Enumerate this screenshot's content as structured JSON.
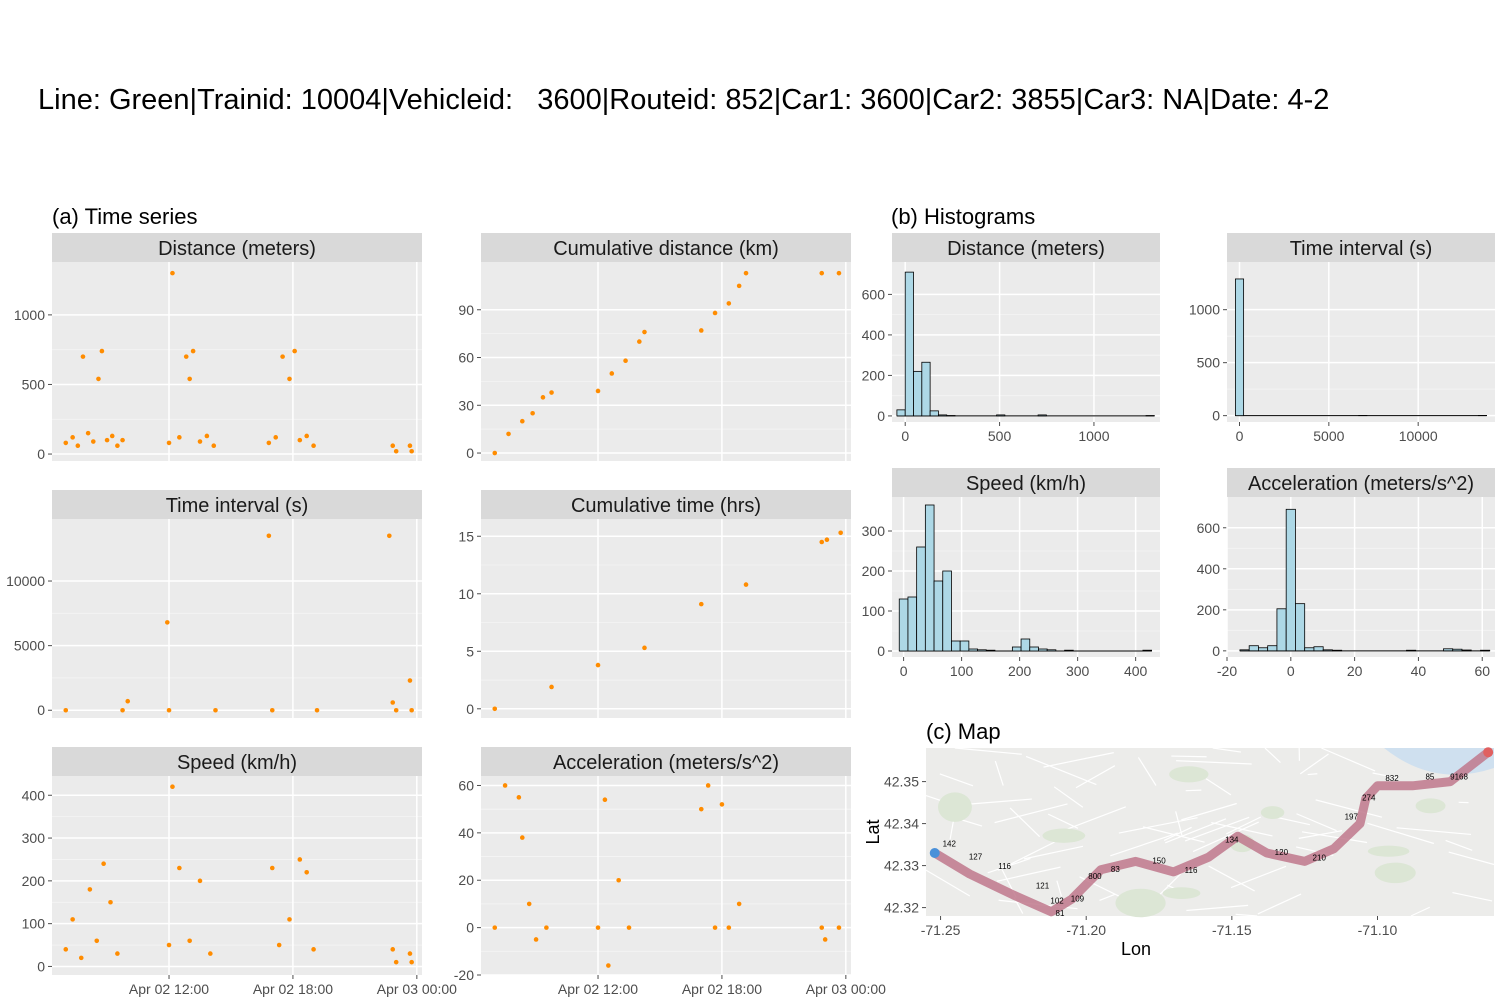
{
  "title": "Line: Green|Trainid: 10004|Vehicleid:   3600|Routeid: 852|Car1: 3600|Car2: 3855|Car3: NA|Date: 4-2",
  "sections": {
    "a": "(a) Time series",
    "b": "(b) Histograms",
    "c": "(c) Map"
  },
  "colors": {
    "points": "#FF8C00",
    "hist_fill": "#ADD8E6",
    "panel_bg": "#EBEBEB",
    "strip_bg": "#D9D9D9",
    "route": "#C0788C",
    "map_end": "#E06060",
    "map_start": "#4A90D9"
  },
  "chart_data": [
    {
      "type": "scatter",
      "panel": "time-series",
      "title": "Distance (meters)",
      "x_type": "datetime",
      "xlim": [
        "2022-04-02 06:20",
        "2022-04-03 00:15"
      ],
      "x_ticks": [
        "2022-04-02 12:00",
        "2022-04-02 18:00",
        "2022-04-03 00:00"
      ],
      "ylim": [
        -50,
        1380
      ],
      "y_ticks": [
        0,
        500,
        1000
      ],
      "points": [
        [
          "2022-04-02 07:00",
          80
        ],
        [
          "2022-04-02 07:20",
          120
        ],
        [
          "2022-04-02 07:35",
          60
        ],
        [
          "2022-04-02 07:50",
          700
        ],
        [
          "2022-04-02 08:05",
          150
        ],
        [
          "2022-04-02 08:20",
          90
        ],
        [
          "2022-04-02 08:35",
          540
        ],
        [
          "2022-04-02 08:45",
          740
        ],
        [
          "2022-04-02 09:00",
          100
        ],
        [
          "2022-04-02 09:15",
          130
        ],
        [
          "2022-04-02 09:30",
          60
        ],
        [
          "2022-04-02 09:45",
          100
        ],
        [
          "2022-04-02 12:00",
          80
        ],
        [
          "2022-04-02 12:10",
          1300
        ],
        [
          "2022-04-02 12:30",
          120
        ],
        [
          "2022-04-02 12:50",
          700
        ],
        [
          "2022-04-02 13:00",
          540
        ],
        [
          "2022-04-02 13:10",
          740
        ],
        [
          "2022-04-02 13:30",
          90
        ],
        [
          "2022-04-02 13:50",
          130
        ],
        [
          "2022-04-02 14:10",
          60
        ],
        [
          "2022-04-02 16:50",
          80
        ],
        [
          "2022-04-02 17:10",
          120
        ],
        [
          "2022-04-02 17:30",
          700
        ],
        [
          "2022-04-02 17:50",
          540
        ],
        [
          "2022-04-02 18:05",
          740
        ],
        [
          "2022-04-02 18:20",
          100
        ],
        [
          "2022-04-02 18:40",
          130
        ],
        [
          "2022-04-02 19:00",
          60
        ],
        [
          "2022-04-02 22:50",
          60
        ],
        [
          "2022-04-02 23:00",
          20
        ],
        [
          "2022-04-02 23:40",
          60
        ],
        [
          "2022-04-02 23:45",
          20
        ]
      ]
    },
    {
      "type": "scatter",
      "panel": "time-series",
      "title": "Cumulative distance (km)",
      "x_type": "datetime",
      "xlim": [
        "2022-04-02 06:20",
        "2022-04-03 00:15"
      ],
      "x_ticks": [
        "2022-04-02 12:00",
        "2022-04-02 18:00",
        "2022-04-03 00:00"
      ],
      "ylim": [
        -5,
        120
      ],
      "y_ticks": [
        0,
        30,
        60,
        90
      ],
      "points": [
        [
          "2022-04-02 07:00",
          0
        ],
        [
          "2022-04-02 07:40",
          12
        ],
        [
          "2022-04-02 08:20",
          20
        ],
        [
          "2022-04-02 08:50",
          25
        ],
        [
          "2022-04-02 09:20",
          35
        ],
        [
          "2022-04-02 09:45",
          38
        ],
        [
          "2022-04-02 12:00",
          39
        ],
        [
          "2022-04-02 12:40",
          50
        ],
        [
          "2022-04-02 13:20",
          58
        ],
        [
          "2022-04-02 14:00",
          70
        ],
        [
          "2022-04-02 14:15",
          76
        ],
        [
          "2022-04-02 17:00",
          77
        ],
        [
          "2022-04-02 17:40",
          88
        ],
        [
          "2022-04-02 18:20",
          94
        ],
        [
          "2022-04-02 18:50",
          105
        ],
        [
          "2022-04-02 19:10",
          113
        ],
        [
          "2022-04-02 22:50",
          113
        ],
        [
          "2022-04-02 23:40",
          113
        ]
      ]
    },
    {
      "type": "scatter",
      "panel": "time-series",
      "title": "Time interval (s)",
      "x_type": "datetime",
      "xlim": [
        "2022-04-02 06:20",
        "2022-04-03 00:15"
      ],
      "x_ticks": [
        "2022-04-02 12:00",
        "2022-04-02 18:00",
        "2022-04-03 00:00"
      ],
      "ylim": [
        -600,
        14800
      ],
      "y_ticks": [
        0,
        5000,
        10000
      ],
      "points": [
        [
          "2022-04-02 07:00",
          0
        ],
        [
          "2022-04-02 09:45",
          0
        ],
        [
          "2022-04-02 10:00",
          700
        ],
        [
          "2022-04-02 11:55",
          6800
        ],
        [
          "2022-04-02 12:00",
          0
        ],
        [
          "2022-04-02 14:15",
          0
        ],
        [
          "2022-04-02 16:50",
          13500
        ],
        [
          "2022-04-02 17:00",
          0
        ],
        [
          "2022-04-02 19:10",
          0
        ],
        [
          "2022-04-02 22:40",
          13500
        ],
        [
          "2022-04-02 22:50",
          600
        ],
        [
          "2022-04-02 23:00",
          0
        ],
        [
          "2022-04-02 23:40",
          2300
        ],
        [
          "2022-04-02 23:45",
          0
        ]
      ]
    },
    {
      "type": "scatter",
      "panel": "time-series",
      "title": "Cumulative time (hrs)",
      "x_type": "datetime",
      "xlim": [
        "2022-04-02 06:20",
        "2022-04-03 00:15"
      ],
      "x_ticks": [
        "2022-04-02 12:00",
        "2022-04-02 18:00",
        "2022-04-03 00:00"
      ],
      "ylim": [
        -0.8,
        16.5
      ],
      "y_ticks": [
        0,
        5,
        10,
        15
      ],
      "points": [
        [
          "2022-04-02 07:00",
          0
        ],
        [
          "2022-04-02 09:45",
          1.9
        ],
        [
          "2022-04-02 12:00",
          3.8
        ],
        [
          "2022-04-02 14:15",
          5.3
        ],
        [
          "2022-04-02 17:00",
          9.1
        ],
        [
          "2022-04-02 19:10",
          10.8
        ],
        [
          "2022-04-02 22:50",
          14.5
        ],
        [
          "2022-04-02 23:05",
          14.7
        ],
        [
          "2022-04-02 23:45",
          15.3
        ]
      ]
    },
    {
      "type": "scatter",
      "panel": "time-series",
      "title": "Speed (km/h)",
      "x_type": "datetime",
      "xlim": [
        "2022-04-02 06:20",
        "2022-04-03 00:15"
      ],
      "x_ticks": [
        "2022-04-02 12:00",
        "2022-04-02 18:00",
        "2022-04-03 00:00"
      ],
      "ylim": [
        -20,
        445
      ],
      "y_ticks": [
        0,
        100,
        200,
        300,
        400
      ],
      "points": [
        [
          "2022-04-02 07:00",
          40
        ],
        [
          "2022-04-02 07:20",
          110
        ],
        [
          "2022-04-02 07:45",
          20
        ],
        [
          "2022-04-02 08:10",
          180
        ],
        [
          "2022-04-02 08:30",
          60
        ],
        [
          "2022-04-02 08:50",
          240
        ],
        [
          "2022-04-02 09:10",
          150
        ],
        [
          "2022-04-02 09:30",
          30
        ],
        [
          "2022-04-02 12:00",
          50
        ],
        [
          "2022-04-02 12:10",
          420
        ],
        [
          "2022-04-02 12:30",
          230
        ],
        [
          "2022-04-02 13:00",
          60
        ],
        [
          "2022-04-02 13:30",
          200
        ],
        [
          "2022-04-02 14:00",
          30
        ],
        [
          "2022-04-02 17:00",
          230
        ],
        [
          "2022-04-02 17:20",
          50
        ],
        [
          "2022-04-02 17:50",
          110
        ],
        [
          "2022-04-02 18:20",
          250
        ],
        [
          "2022-04-02 18:40",
          220
        ],
        [
          "2022-04-02 19:00",
          40
        ],
        [
          "2022-04-02 22:50",
          40
        ],
        [
          "2022-04-02 23:00",
          10
        ],
        [
          "2022-04-02 23:40",
          30
        ],
        [
          "2022-04-02 23:45",
          10
        ]
      ]
    },
    {
      "type": "scatter",
      "panel": "time-series",
      "title": "Acceleration (meters/s^2)",
      "x_type": "datetime",
      "xlim": [
        "2022-04-02 06:20",
        "2022-04-03 00:15"
      ],
      "x_ticks": [
        "2022-04-02 12:00",
        "2022-04-02 18:00",
        "2022-04-03 00:00"
      ],
      "ylim": [
        -20,
        64
      ],
      "y_ticks": [
        -20,
        0,
        20,
        40,
        60
      ],
      "points": [
        [
          "2022-04-02 07:00",
          0
        ],
        [
          "2022-04-02 07:30",
          60
        ],
        [
          "2022-04-02 08:10",
          55
        ],
        [
          "2022-04-02 08:20",
          38
        ],
        [
          "2022-04-02 08:40",
          10
        ],
        [
          "2022-04-02 09:00",
          -5
        ],
        [
          "2022-04-02 09:30",
          0
        ],
        [
          "2022-04-02 12:00",
          0
        ],
        [
          "2022-04-02 12:20",
          54
        ],
        [
          "2022-04-02 12:30",
          -16
        ],
        [
          "2022-04-02 13:00",
          20
        ],
        [
          "2022-04-02 13:30",
          0
        ],
        [
          "2022-04-02 17:00",
          50
        ],
        [
          "2022-04-02 17:20",
          60
        ],
        [
          "2022-04-02 17:40",
          0
        ],
        [
          "2022-04-02 18:00",
          52
        ],
        [
          "2022-04-02 18:20",
          0
        ],
        [
          "2022-04-02 18:50",
          10
        ],
        [
          "2022-04-02 22:50",
          0
        ],
        [
          "2022-04-02 23:00",
          -5
        ],
        [
          "2022-04-02 23:40",
          0
        ]
      ]
    },
    {
      "type": "bar",
      "panel": "histogram",
      "title": "Distance (meters)",
      "x_ticks": [
        0,
        500,
        1000
      ],
      "xlim": [
        -70,
        1350
      ],
      "ylim": [
        -30,
        760
      ],
      "y_ticks": [
        0,
        200,
        400,
        600
      ],
      "bin_width": 44,
      "bins": [
        [
          -22,
          30
        ],
        [
          22,
          710
        ],
        [
          66,
          220
        ],
        [
          110,
          265
        ],
        [
          154,
          25
        ],
        [
          198,
          5
        ],
        [
          242,
          2
        ],
        [
          506,
          5
        ],
        [
          726,
          5
        ],
        [
          1298,
          2
        ]
      ]
    },
    {
      "type": "bar",
      "panel": "histogram",
      "title": "Time interval (s)",
      "x_ticks": [
        0,
        5000,
        10000
      ],
      "xlim": [
        -700,
        14300
      ],
      "ylim": [
        -60,
        1450
      ],
      "y_ticks": [
        0,
        500,
        1000
      ],
      "bin_width": 460,
      "bins": [
        [
          0,
          1290
        ],
        [
          6900,
          2
        ],
        [
          13600,
          2
        ]
      ]
    },
    {
      "type": "bar",
      "panel": "histogram",
      "title": "Speed (km/h)",
      "x_ticks": [
        0,
        100,
        200,
        300,
        400
      ],
      "xlim": [
        -20,
        442
      ],
      "ylim": [
        -15,
        385
      ],
      "y_ticks": [
        0,
        100,
        200,
        300
      ],
      "bin_width": 15,
      "bins": [
        [
          0,
          130
        ],
        [
          15,
          135
        ],
        [
          30,
          260
        ],
        [
          45,
          365
        ],
        [
          60,
          175
        ],
        [
          75,
          200
        ],
        [
          90,
          25
        ],
        [
          105,
          25
        ],
        [
          120,
          5
        ],
        [
          135,
          3
        ],
        [
          150,
          2
        ],
        [
          195,
          10
        ],
        [
          210,
          30
        ],
        [
          225,
          10
        ],
        [
          240,
          5
        ],
        [
          255,
          3
        ],
        [
          285,
          2
        ],
        [
          420,
          2
        ]
      ]
    },
    {
      "type": "bar",
      "panel": "histogram",
      "title": "Acceleration (meters/s^2)",
      "x_ticks": [
        -20,
        0,
        20,
        40,
        60
      ],
      "xlim": [
        -20,
        64
      ],
      "ylim": [
        -30,
        750
      ],
      "y_ticks": [
        0,
        200,
        400,
        600
      ],
      "bin_width": 2.9,
      "bins": [
        [
          -14.5,
          5
        ],
        [
          -11.6,
          25
        ],
        [
          -8.7,
          15
        ],
        [
          -5.8,
          25
        ],
        [
          -2.9,
          205
        ],
        [
          0,
          690
        ],
        [
          2.9,
          230
        ],
        [
          5.8,
          15
        ],
        [
          8.7,
          20
        ],
        [
          11.6,
          5
        ],
        [
          14.5,
          3
        ],
        [
          37.7,
          3
        ],
        [
          49.3,
          10
        ],
        [
          52.2,
          8
        ],
        [
          55.1,
          4
        ],
        [
          60.9,
          3
        ]
      ]
    },
    {
      "type": "map",
      "panel": "map",
      "title": "",
      "xlabel": "Lon",
      "ylabel": "Lat",
      "xlim": [
        -71.255,
        -71.06
      ],
      "ylim": [
        42.318,
        42.358
      ],
      "x_ticks": [
        -71.25,
        -71.2,
        -71.15,
        -71.1
      ],
      "y_ticks": [
        42.32,
        42.33,
        42.34,
        42.35
      ],
      "route": [
        [
          -71.252,
          42.333
        ],
        [
          -71.24,
          42.328
        ],
        [
          -71.225,
          42.323
        ],
        [
          -71.212,
          42.319
        ],
        [
          -71.205,
          42.322
        ],
        [
          -71.195,
          42.329
        ],
        [
          -71.183,
          42.331
        ],
        [
          -71.17,
          42.3285
        ],
        [
          -71.158,
          42.332
        ],
        [
          -71.148,
          42.337
        ],
        [
          -71.138,
          42.333
        ],
        [
          -71.125,
          42.331
        ],
        [
          -71.115,
          42.334
        ],
        [
          -71.106,
          42.34
        ],
        [
          -71.104,
          42.346
        ],
        [
          -71.1,
          42.349
        ],
        [
          -71.088,
          42.349
        ],
        [
          -71.075,
          42.35
        ],
        [
          -71.062,
          42.357
        ]
      ],
      "labels": [
        [
          -71.247,
          42.3345,
          "142"
        ],
        [
          -71.238,
          42.3315,
          "127"
        ],
        [
          -71.228,
          42.3292,
          "116"
        ],
        [
          -71.215,
          42.3245,
          "121"
        ],
        [
          -71.21,
          42.321,
          "102"
        ],
        [
          -71.209,
          42.318,
          "81"
        ],
        [
          -71.203,
          42.3215,
          "109"
        ],
        [
          -71.197,
          42.3268,
          "800"
        ],
        [
          -71.19,
          42.3285,
          "83"
        ],
        [
          -71.175,
          42.3305,
          "150"
        ],
        [
          -71.164,
          42.3282,
          "116"
        ],
        [
          -71.15,
          42.3355,
          "134"
        ],
        [
          -71.133,
          42.3325,
          "120"
        ],
        [
          -71.12,
          42.3312,
          "210"
        ],
        [
          -71.109,
          42.341,
          "197"
        ],
        [
          -71.103,
          42.3455,
          "274"
        ],
        [
          -71.095,
          42.3502,
          "832"
        ],
        [
          -71.082,
          42.3505,
          "85"
        ],
        [
          -71.072,
          42.3505,
          "9168"
        ]
      ]
    }
  ]
}
